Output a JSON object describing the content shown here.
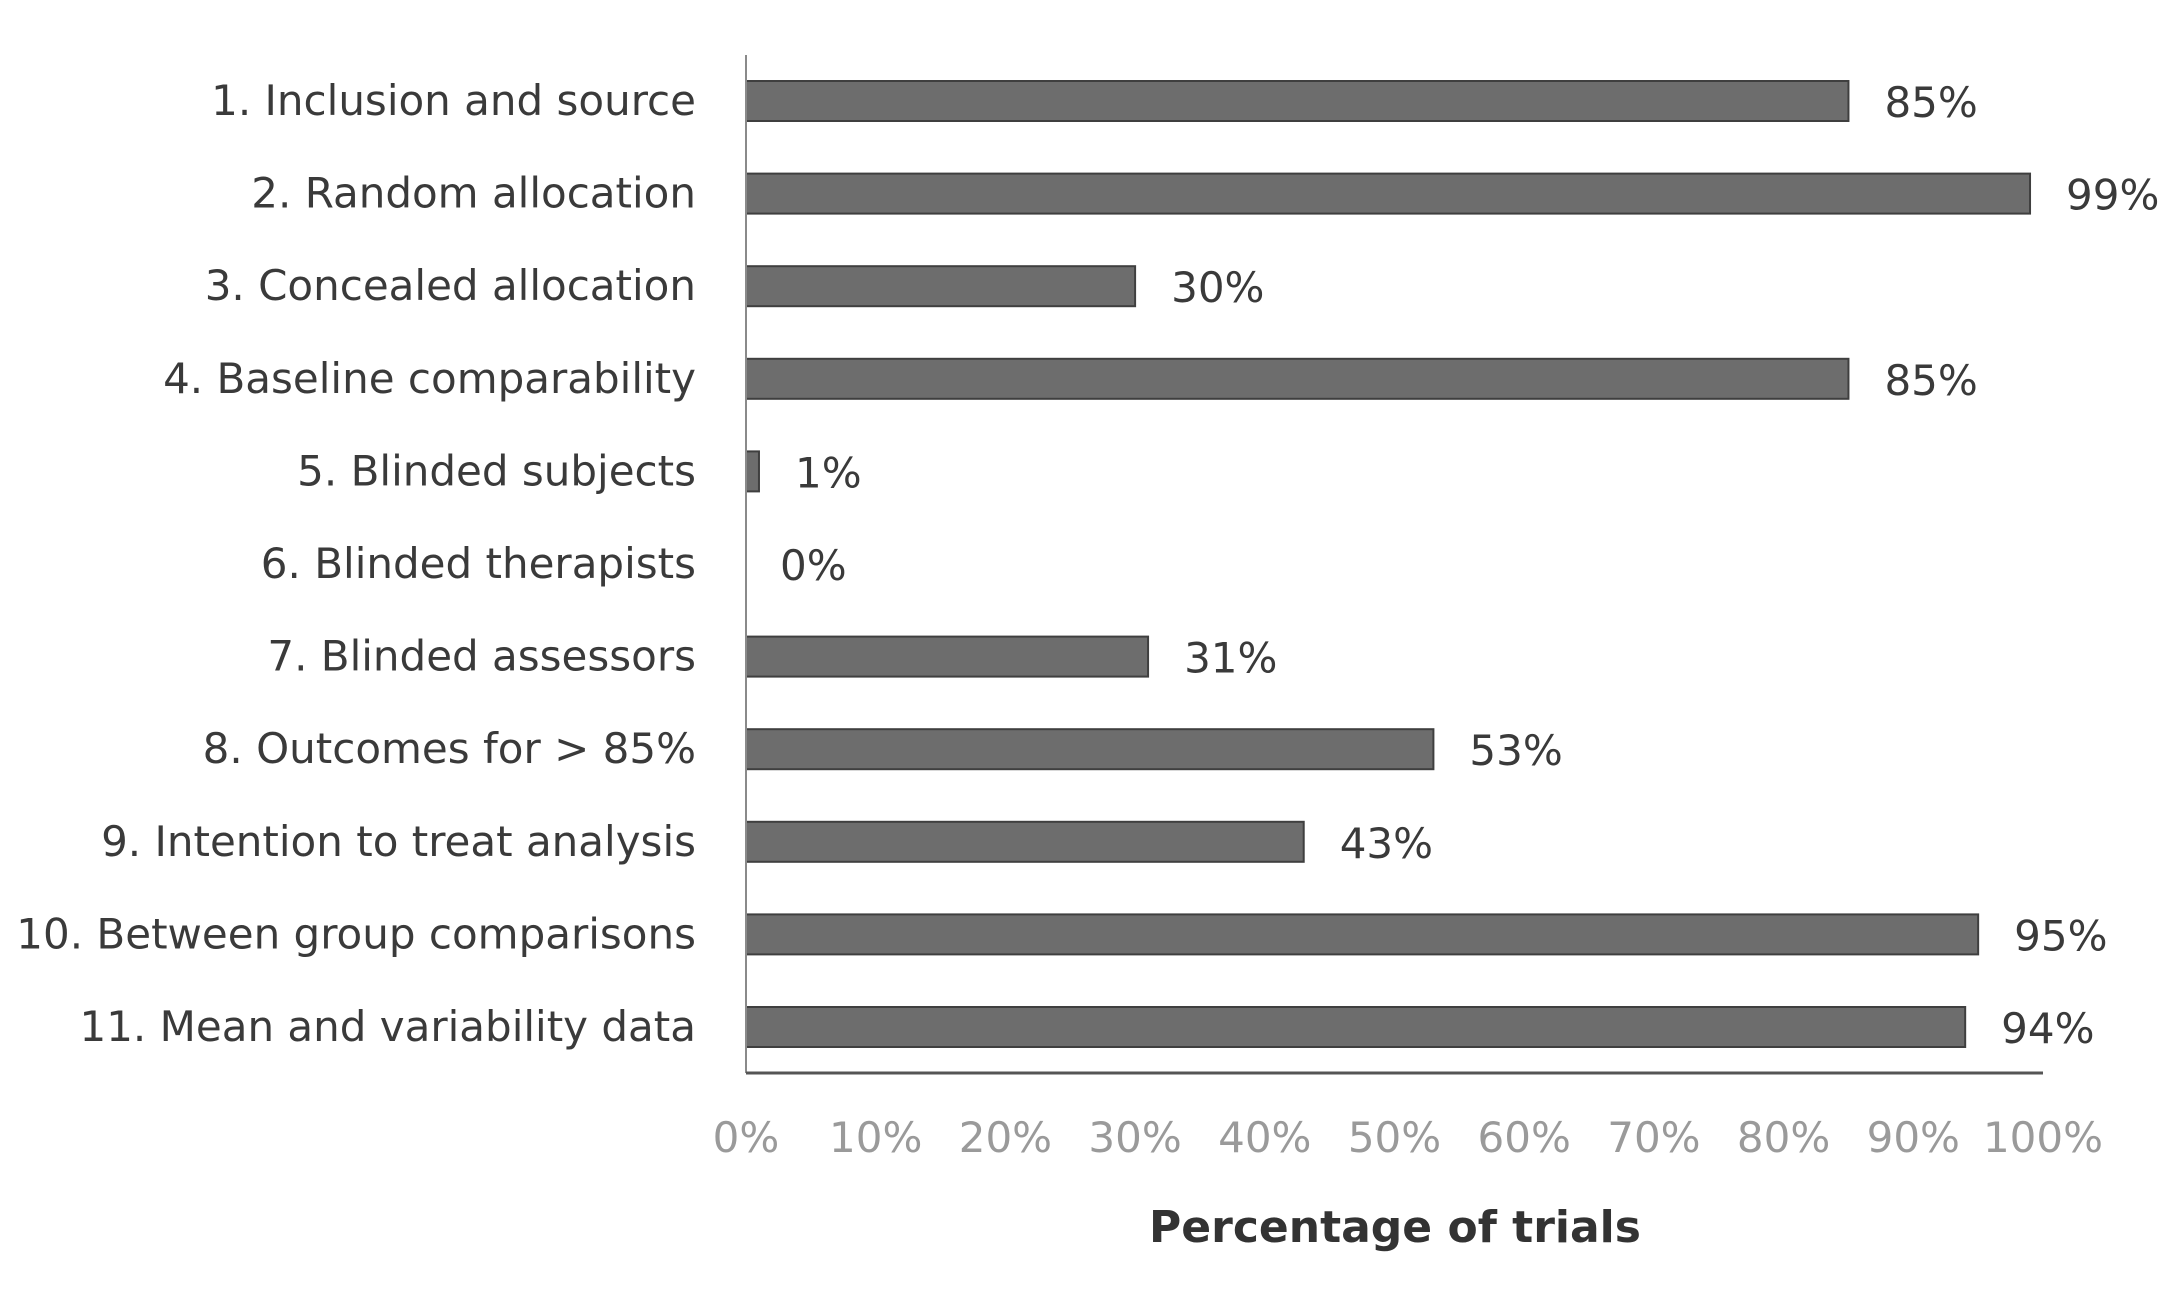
{
  "chart_data": {
    "type": "bar",
    "orientation": "horizontal",
    "categories": [
      "1. Inclusion and source",
      "2. Random allocation",
      "3. Concealed allocation",
      "4. Baseline comparability",
      "5. Blinded subjects",
      "6. Blinded therapists",
      "7. Blinded assessors",
      "8. Outcomes for > 85%",
      "9. Intention to treat analysis",
      "10. Between group comparisons",
      "11. Mean and variability data"
    ],
    "values": [
      85,
      99,
      30,
      85,
      1,
      0,
      31,
      53,
      43,
      95,
      94
    ],
    "data_labels": [
      "85%",
      "99%",
      "30%",
      "85%",
      "1%",
      "0%",
      "31%",
      "53%",
      "43%",
      "95%",
      "94%"
    ],
    "title": "",
    "xlabel": "Percentage of trials",
    "ylabel": "",
    "xlim": [
      0,
      100
    ],
    "x_ticks": [
      0,
      10,
      20,
      30,
      40,
      50,
      60,
      70,
      80,
      90,
      100
    ],
    "x_tick_labels": [
      "0%",
      "10%",
      "20%",
      "30%",
      "40%",
      "50%",
      "60%",
      "70%",
      "80%",
      "90%",
      "100%"
    ],
    "grid": false,
    "legend": "none",
    "bar_color": "#6d6d6d",
    "bar_edge_color": "#3f3f3f"
  }
}
